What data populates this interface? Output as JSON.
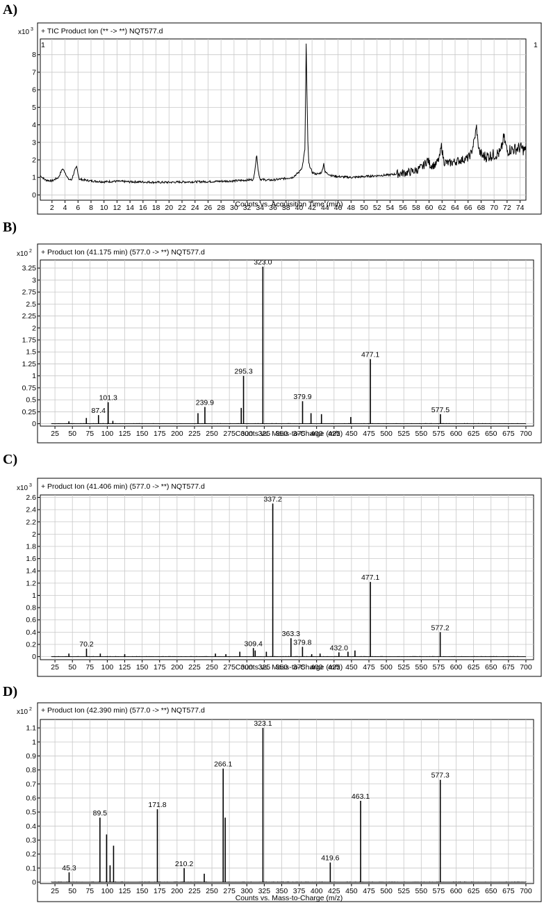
{
  "panels": [
    {
      "letter": "A)",
      "multiplier": "x10",
      "multiplier_exp": "3",
      "header": "+ TIC Product Ion (** -> **) NQT577.d",
      "corner_left": "1",
      "corner_right": "1",
      "xlabel": "Counts vs. Acquisition Time (min)"
    },
    {
      "letter": "B)",
      "multiplier": "x10",
      "multiplier_exp": "2",
      "header": "+ Product Ion (41.175 min) (577.0 -> **) NQT577.d",
      "xlabel": "Counts vs. Mass-to-Charge (m/z)"
    },
    {
      "letter": "C)",
      "multiplier": "x10",
      "multiplier_exp": "3",
      "header": "+ Product Ion (41.406 min) (577.0 -> **) NQT577.d",
      "xlabel": "Counts vs. Mass-to-Charge (m/z)"
    },
    {
      "letter": "D)",
      "multiplier": "x10",
      "multiplier_exp": "2",
      "header": "+ Product Ion (42.390 min) (577.0 -> **) NQT577.d",
      "xlabel": "Counts vs. Mass-to-Charge (m/z)"
    }
  ],
  "chart_data": [
    {
      "type": "line",
      "xlim": [
        0.2,
        74.9
      ],
      "ylim": [
        -0.3,
        8.9
      ],
      "xticks": [
        2,
        4,
        6,
        8,
        10,
        12,
        14,
        16,
        18,
        20,
        22,
        24,
        26,
        28,
        30,
        32,
        34,
        36,
        38,
        40,
        42,
        44,
        46,
        48,
        50,
        52,
        54,
        56,
        58,
        60,
        62,
        64,
        66,
        68,
        70,
        72,
        74
      ],
      "yticks": [
        0,
        1,
        2,
        3,
        4,
        5,
        6,
        7,
        8
      ],
      "grid": true,
      "x": [
        0.2,
        1,
        2,
        3,
        3.6,
        4,
        4.5,
        5,
        5.5,
        5.8,
        6.2,
        7,
        8,
        10,
        12,
        14,
        16,
        18,
        20,
        22,
        24,
        26,
        28,
        30,
        32,
        33,
        33.5,
        33.7,
        34,
        35,
        36,
        37,
        38,
        39,
        40,
        40.5,
        40.9,
        41.1,
        41.2,
        41.35,
        41.5,
        41.8,
        42,
        42.5,
        43,
        43.5,
        43.8,
        44,
        44.5,
        45,
        46,
        48,
        50,
        52,
        54,
        56,
        57,
        58,
        59,
        59.8,
        60.2,
        61,
        61.6,
        61.9,
        62.3,
        63,
        64,
        65,
        66,
        66.5,
        67,
        67.3,
        67.5,
        67.8,
        68.3,
        69,
        70,
        71,
        71.5,
        72,
        72.5,
        73,
        74,
        74.9
      ],
      "y": [
        1.1,
        0.85,
        0.8,
        1.0,
        1.5,
        1.3,
        0.9,
        0.85,
        1.4,
        1.6,
        0.9,
        0.85,
        0.8,
        0.75,
        0.78,
        0.75,
        0.74,
        0.72,
        0.72,
        0.74,
        0.75,
        0.76,
        0.78,
        0.8,
        0.85,
        0.88,
        2.3,
        1.4,
        0.9,
        0.85,
        0.85,
        0.9,
        0.95,
        1.0,
        1.3,
        1.6,
        2.6,
        8.6,
        6.0,
        3.0,
        1.8,
        1.5,
        1.3,
        1.2,
        1.2,
        1.3,
        1.8,
        1.3,
        1.2,
        1.1,
        1.05,
        1.0,
        1.05,
        1.1,
        1.15,
        1.25,
        1.3,
        1.4,
        1.6,
        2.0,
        1.7,
        1.7,
        2.1,
        2.8,
        1.9,
        1.8,
        1.9,
        2.0,
        2.1,
        2.4,
        3.2,
        3.9,
        3.0,
        2.4,
        2.2,
        2.2,
        2.3,
        2.4,
        3.3,
        2.5,
        2.6,
        2.6,
        2.7,
        2.5
      ]
    },
    {
      "type": "bar",
      "xlim": [
        4,
        711
      ],
      "ylim": [
        -0.05,
        3.42
      ],
      "xticks": [
        25,
        50,
        75,
        100,
        125,
        150,
        175,
        200,
        225,
        250,
        275,
        300,
        325,
        350,
        375,
        400,
        425,
        450,
        475,
        500,
        525,
        550,
        575,
        600,
        625,
        650,
        675,
        700
      ],
      "yticks": [
        0,
        0.25,
        0.5,
        0.75,
        1,
        1.25,
        1.5,
        1.75,
        2,
        2.25,
        2.5,
        2.75,
        3,
        3.25
      ],
      "grid": true,
      "mz": [
        45,
        70,
        87.4,
        101.3,
        108,
        230,
        239.9,
        292,
        295.3,
        323.0,
        379.9,
        392,
        407,
        449,
        477.1,
        577.5
      ],
      "intensity": [
        0.05,
        0.12,
        0.18,
        0.45,
        0.06,
        0.22,
        0.35,
        0.33,
        1.0,
        3.28,
        0.47,
        0.22,
        0.2,
        0.14,
        1.35,
        0.2
      ],
      "labels": {
        "87.4": "87.4",
        "101.3": "101.3",
        "239.9": "239.9",
        "295.3": "295.3",
        "323.0": "323.0",
        "379.9": "379.9",
        "477.1": "477.1",
        "577.5": "577.5"
      }
    },
    {
      "type": "bar",
      "xlim": [
        4,
        711
      ],
      "ylim": [
        -0.05,
        2.64
      ],
      "xticks": [
        25,
        50,
        75,
        100,
        125,
        150,
        175,
        200,
        225,
        250,
        275,
        300,
        325,
        350,
        375,
        400,
        425,
        450,
        475,
        500,
        525,
        550,
        575,
        600,
        625,
        650,
        675,
        700
      ],
      "yticks": [
        0,
        0.2,
        0.4,
        0.6,
        0.8,
        1,
        1.2,
        1.4,
        1.6,
        1.8,
        2,
        2.2,
        2.4,
        2.6
      ],
      "grid": true,
      "mz": [
        45,
        70.2,
        90,
        125,
        255,
        270,
        290,
        309.4,
        312,
        328,
        337.2,
        363.3,
        379.8,
        393,
        405,
        432.0,
        445,
        455,
        477.1,
        577.2
      ],
      "intensity": [
        0.05,
        0.13,
        0.05,
        0.04,
        0.05,
        0.04,
        0.08,
        0.14,
        0.1,
        0.08,
        2.5,
        0.3,
        0.16,
        0.04,
        0.05,
        0.07,
        0.08,
        0.1,
        1.22,
        0.4
      ],
      "labels": {
        "70.2": "70.2",
        "309.4": "309.4",
        "337.2": "337.2",
        "363.3": "363.3",
        "379.8": "379.8",
        "432.0": "432.0",
        "477.1": "477.1",
        "577.2": "577.2"
      }
    },
    {
      "type": "bar",
      "xlim": [
        4,
        711
      ],
      "ylim": [
        -0.01,
        1.16
      ],
      "xticks": [
        25,
        50,
        75,
        100,
        125,
        150,
        175,
        200,
        225,
        250,
        275,
        300,
        325,
        350,
        375,
        400,
        425,
        450,
        475,
        500,
        525,
        550,
        575,
        600,
        625,
        650,
        675,
        700
      ],
      "yticks": [
        0,
        0.1,
        0.2,
        0.3,
        0.4,
        0.5,
        0.6,
        0.7,
        0.8,
        0.9,
        1,
        1.1
      ],
      "grid": true,
      "mz": [
        45.3,
        89.5,
        99,
        104,
        109,
        171.8,
        210.2,
        239,
        266.1,
        269,
        323.1,
        419.6,
        463.1,
        577.3
      ],
      "intensity": [
        0.07,
        0.46,
        0.34,
        0.12,
        0.26,
        0.52,
        0.1,
        0.06,
        0.81,
        0.46,
        1.1,
        0.14,
        0.58,
        0.73
      ],
      "labels": {
        "45.3": "45.3",
        "89.5": "89.5",
        "171.8": "171.8",
        "210.2": "210.2",
        "266.1": "266.1",
        "323.1": "323.1",
        "419.6": "419.6",
        "463.1": "463.1",
        "577.3": "577.3"
      }
    }
  ]
}
